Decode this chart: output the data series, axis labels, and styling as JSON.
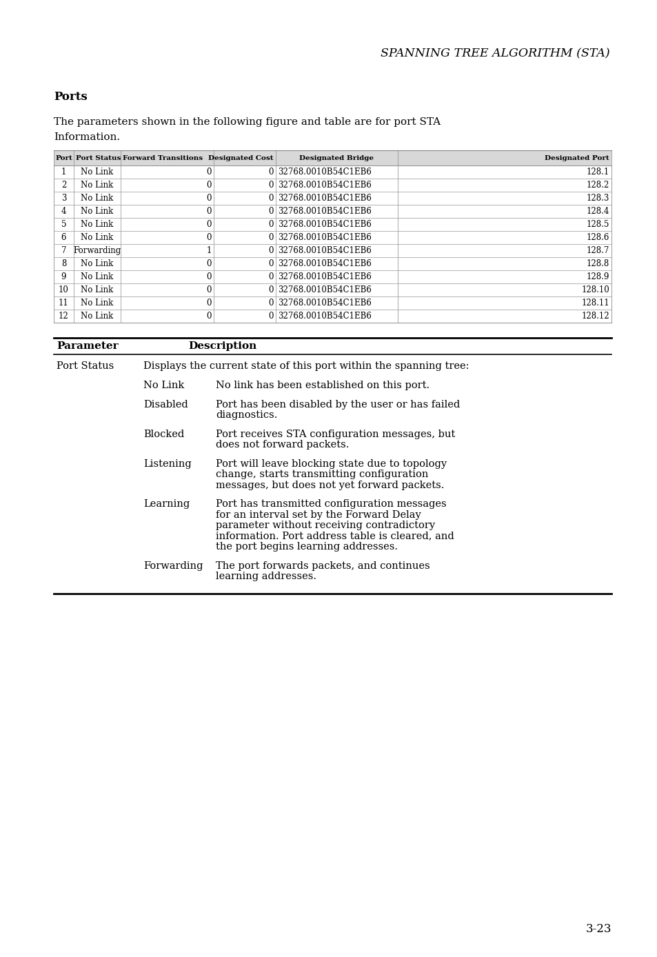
{
  "title": "SPANNING TREE ALGORITHM (STA)",
  "section_title": "Ports",
  "intro_line1": "The parameters shown in the following figure and table are for port STA",
  "intro_line2": "Information.",
  "table_headers": [
    "Port",
    "Port Status",
    "Forward Transitions",
    "Designated Cost",
    "Designated Bridge",
    "Designated Port"
  ],
  "table_rows": [
    [
      "1",
      "No Link",
      "0",
      "0",
      "32768.0010B54C1EB6",
      "128.1"
    ],
    [
      "2",
      "No Link",
      "0",
      "0",
      "32768.0010B54C1EB6",
      "128.2"
    ],
    [
      "3",
      "No Link",
      "0",
      "0",
      "32768.0010B54C1EB6",
      "128.3"
    ],
    [
      "4",
      "No Link",
      "0",
      "0",
      "32768.0010B54C1EB6",
      "128.4"
    ],
    [
      "5",
      "No Link",
      "0",
      "0",
      "32768.0010B54C1EB6",
      "128.5"
    ],
    [
      "6",
      "No Link",
      "0",
      "0",
      "32768.0010B54C1EB6",
      "128.6"
    ],
    [
      "7",
      "Forwarding",
      "1",
      "0",
      "32768.0010B54C1EB6",
      "128.7"
    ],
    [
      "8",
      "No Link",
      "0",
      "0",
      "32768.0010B54C1EB6",
      "128.8"
    ],
    [
      "9",
      "No Link",
      "0",
      "0",
      "32768.0010B54C1EB6",
      "128.9"
    ],
    [
      "10",
      "No Link",
      "0",
      "0",
      "32768.0010B54C1EB6",
      "128.10"
    ],
    [
      "11",
      "No Link",
      "0",
      "0",
      "32768.0010B54C1EB6",
      "128.11"
    ],
    [
      "12",
      "No Link",
      "0",
      "0",
      "32768.0010B54C1EB6",
      "128.12"
    ]
  ],
  "param_header": [
    "Parameter",
    "Description"
  ],
  "param_rows": [
    {
      "parameter": "Port Status",
      "description": "Displays the current state of this port within the spanning tree:",
      "sub_items": [
        {
          "label": "No Link",
          "text": "No link has been established on this port."
        },
        {
          "label": "Disabled",
          "text": "Port has been disabled by the user or has failed\ndiagnostics."
        },
        {
          "label": "Blocked",
          "text": "Port receives STA configuration messages, but\ndoes not forward packets."
        },
        {
          "label": "Listening",
          "text": "Port will leave blocking state due to topology\nchange, starts transmitting configuration\nmessages, but does not yet forward packets."
        },
        {
          "label": "Learning",
          "text": "Port has transmitted configuration messages\nfor an interval set by the Forward Delay\nparameter without receiving contradictory\ninformation. Port address table is cleared, and\nthe port begins learning addresses."
        },
        {
          "label": "Forwarding",
          "text": "The port forwards packets, and continues\nlearning addresses."
        }
      ]
    }
  ],
  "page_number": "3-23",
  "bg_color": "#ffffff",
  "text_color": "#000000",
  "table_border_color": "#888888",
  "table_header_bg": "#cccccc"
}
